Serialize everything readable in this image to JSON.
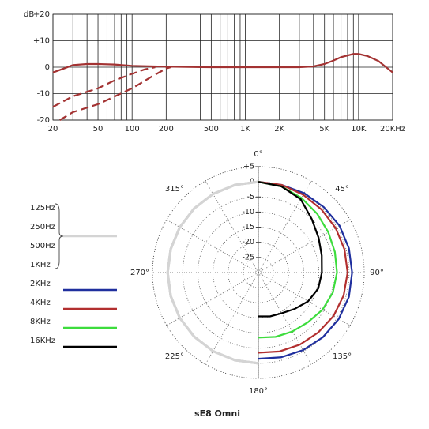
{
  "chart_data": [
    {
      "type": "line",
      "xscale": "log",
      "ylabel": "dB",
      "xlim": [
        20,
        20000
      ],
      "xticks": [
        20,
        50,
        100,
        200,
        500,
        {
          "value": 1000,
          "label": "1K"
        },
        {
          "value": 2000,
          "label": "2K"
        },
        {
          "value": 5000,
          "label": "5K"
        },
        {
          "value": 10000,
          "label": "10K"
        },
        {
          "value": 20000,
          "label": "20KHz"
        }
      ],
      "xminor": [
        30,
        40,
        60,
        70,
        80,
        90,
        300,
        400,
        600,
        700,
        800,
        900,
        3000,
        4000,
        6000,
        7000,
        8000,
        9000
      ],
      "ylim": [
        -20,
        20
      ],
      "yticks": [
        {
          "value": 20,
          "label": "+20"
        },
        {
          "value": 10,
          "label": "+10"
        },
        0,
        -10,
        -20
      ],
      "grid": true,
      "series": [
        {
          "color": "#a33232",
          "dash": false,
          "x": [
            20,
            25,
            30,
            40,
            50,
            70,
            100,
            200,
            500,
            1000,
            2000,
            3000,
            4000,
            5000,
            6000,
            7000,
            9000,
            10000,
            12000,
            15000,
            20000
          ],
          "values": [
            -2,
            -0.5,
            0.8,
            1.2,
            1.2,
            1,
            0.5,
            0.2,
            0,
            0,
            0,
            0,
            0.3,
            1.2,
            2.5,
            3.8,
            5,
            5,
            4.2,
            2.3,
            -2
          ]
        },
        {
          "color": "#a33232",
          "dash": true,
          "x": [
            20,
            30,
            50,
            70,
            100,
            130,
            160
          ],
          "values": [
            -15,
            -11,
            -8,
            -5,
            -2.5,
            -0.8,
            0
          ]
        },
        {
          "color": "#a33232",
          "dash": true,
          "x": [
            23,
            30,
            50,
            100,
            150,
            200,
            220
          ],
          "values": [
            -20,
            -17,
            -14,
            -8,
            -3.5,
            -0.5,
            0
          ]
        }
      ]
    },
    {
      "type": "polar",
      "title": "sE8 Omni",
      "rlim": [
        -30,
        5
      ],
      "rticks": [
        {
          "value": 5,
          "label": "+5"
        },
        0,
        -5,
        -10,
        -15,
        -20,
        -25
      ],
      "angleticks": [
        {
          "value": 0,
          "label": "0°"
        },
        {
          "value": 45,
          "label": "45°"
        },
        {
          "value": 90,
          "label": "90°"
        },
        {
          "value": 135,
          "label": "135°"
        },
        {
          "value": 180,
          "label": "180°"
        },
        {
          "value": 225,
          "label": "225°"
        },
        {
          "value": 270,
          "label": "270°"
        },
        {
          "value": 315,
          "label": "315°"
        }
      ],
      "angles": [
        0,
        15,
        30,
        45,
        60,
        75,
        90,
        105,
        120,
        135,
        150,
        165,
        180
      ],
      "series": [
        {
          "name": "125Hz",
          "color": "#d4d4d4",
          "side": "left",
          "values": [
            0,
            0,
            0,
            0,
            0,
            0,
            0,
            0,
            0,
            0,
            0,
            0,
            0
          ]
        },
        {
          "name": "250Hz",
          "color": "#d4d4d4",
          "side": "left",
          "values": [
            0,
            0,
            0,
            0,
            0,
            0,
            0,
            0,
            0,
            0,
            0,
            0,
            0
          ]
        },
        {
          "name": "500Hz",
          "color": "#d4d4d4",
          "side": "left",
          "values": [
            0,
            0,
            0,
            0,
            0,
            0,
            0,
            0,
            0,
            0,
            0,
            0,
            0
          ]
        },
        {
          "name": "1KHz",
          "color": "#d4d4d4",
          "side": "left",
          "values": [
            0,
            0,
            0,
            0,
            0,
            0,
            0,
            0,
            0,
            0,
            0,
            0,
            0
          ]
        },
        {
          "name": "2KHz",
          "color": "#1f2f9e",
          "side": "right",
          "values": [
            0,
            0,
            0.3,
            0.6,
            1,
            1,
            1,
            1,
            0.7,
            0.2,
            -0.4,
            -1,
            -1.5
          ]
        },
        {
          "name": "4KHz",
          "color": "#b22f2f",
          "side": "right",
          "values": [
            0,
            0,
            -0.3,
            -0.5,
            -0.5,
            -0.5,
            -0.5,
            -0.8,
            -1.3,
            -2,
            -2.5,
            -3,
            -3.5
          ]
        },
        {
          "name": "8KHz",
          "color": "#3ddc3d",
          "side": "right",
          "values": [
            0,
            -0.5,
            -1.5,
            -2.5,
            -3.3,
            -3.8,
            -4,
            -4.5,
            -5.5,
            -6.8,
            -7.5,
            -8,
            -8.5
          ]
        },
        {
          "name": "16KHz",
          "color": "#000000",
          "side": "right",
          "values": [
            0,
            -0.5,
            -2,
            -5,
            -7,
            -8.3,
            -9,
            -9.5,
            -11,
            -13,
            -14.5,
            -15,
            -15.5
          ]
        }
      ]
    }
  ]
}
